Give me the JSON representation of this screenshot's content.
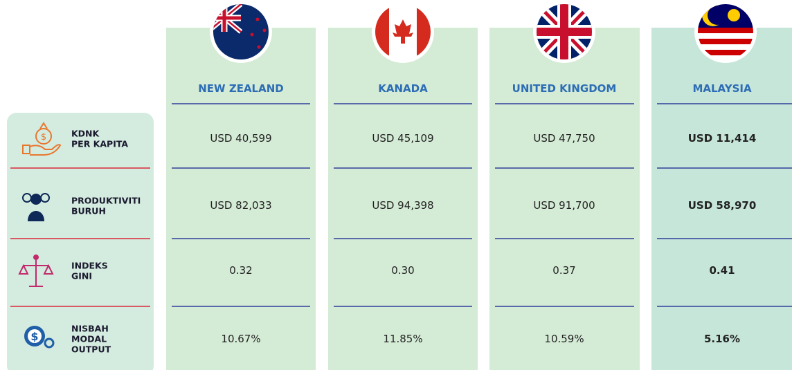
{
  "table": {
    "columns": [
      "NEW ZEALAND",
      "KANADA",
      "UNITED KINGDOM",
      "MALAYSIA"
    ],
    "rows": [
      {
        "label": [
          "KDNK",
          "PER KAPITA"
        ],
        "values": [
          "USD 40,599",
          "USD 45,109",
          "USD 47,750",
          "USD 11,414"
        ]
      },
      {
        "label": [
          "PRODUKTIVITI",
          "BURUH"
        ],
        "values": [
          "USD 82,033",
          "USD 94,398",
          "USD 91,700",
          "USD 58,970"
        ]
      },
      {
        "label": [
          "INDEKS",
          "GINI"
        ],
        "values": [
          "0.32",
          "0.30",
          "0.37",
          "0.41"
        ]
      },
      {
        "label": [
          "NISBAH",
          "MODAL",
          "OUTPUT"
        ],
        "values": [
          "10.67%",
          "11.85%",
          "10.59%",
          "5.16%"
        ]
      }
    ]
  }
}
